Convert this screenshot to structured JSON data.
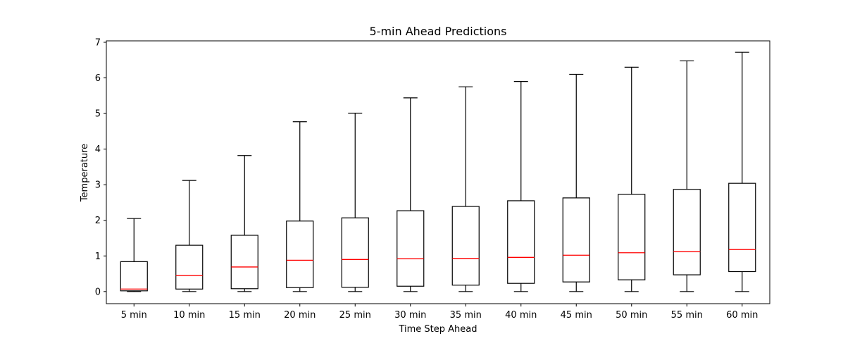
{
  "chart_data": {
    "type": "box",
    "title": "5-min Ahead Predictions",
    "xlabel": "Time Step Ahead",
    "ylabel": "Temperature",
    "ylim": [
      -0.34,
      7.04
    ],
    "yticks": [
      0,
      1,
      2,
      3,
      4,
      5,
      6,
      7
    ],
    "grid": false,
    "categories": [
      "5 min",
      "10 min",
      "15 min",
      "20 min",
      "25 min",
      "30 min",
      "35 min",
      "40 min",
      "45 min",
      "50 min",
      "55 min",
      "60 min"
    ],
    "boxes": [
      {
        "whisker_low": 0.0,
        "q1": 0.02,
        "median": 0.07,
        "q3": 0.84,
        "whisker_high": 2.05
      },
      {
        "whisker_low": 0.0,
        "q1": 0.07,
        "median": 0.45,
        "q3": 1.3,
        "whisker_high": 3.12
      },
      {
        "whisker_low": 0.0,
        "q1": 0.08,
        "median": 0.69,
        "q3": 1.58,
        "whisker_high": 3.82
      },
      {
        "whisker_low": 0.0,
        "q1": 0.11,
        "median": 0.88,
        "q3": 1.98,
        "whisker_high": 4.77
      },
      {
        "whisker_low": 0.0,
        "q1": 0.12,
        "median": 0.9,
        "q3": 2.07,
        "whisker_high": 5.01
      },
      {
        "whisker_low": 0.0,
        "q1": 0.15,
        "median": 0.92,
        "q3": 2.27,
        "whisker_high": 5.44
      },
      {
        "whisker_low": 0.0,
        "q1": 0.18,
        "median": 0.93,
        "q3": 2.39,
        "whisker_high": 5.75
      },
      {
        "whisker_low": 0.0,
        "q1": 0.23,
        "median": 0.96,
        "q3": 2.55,
        "whisker_high": 5.9
      },
      {
        "whisker_low": 0.0,
        "q1": 0.27,
        "median": 1.02,
        "q3": 2.63,
        "whisker_high": 6.1
      },
      {
        "whisker_low": 0.0,
        "q1": 0.33,
        "median": 1.09,
        "q3": 2.73,
        "whisker_high": 6.3
      },
      {
        "whisker_low": 0.0,
        "q1": 0.47,
        "median": 1.12,
        "q3": 2.87,
        "whisker_high": 6.48
      },
      {
        "whisker_low": 0.0,
        "q1": 0.56,
        "median": 1.18,
        "q3": 3.04,
        "whisker_high": 6.72
      }
    ],
    "colors": {
      "box": "#000000",
      "median": "#ff0000",
      "axes": "#000000",
      "background": "#ffffff"
    }
  }
}
